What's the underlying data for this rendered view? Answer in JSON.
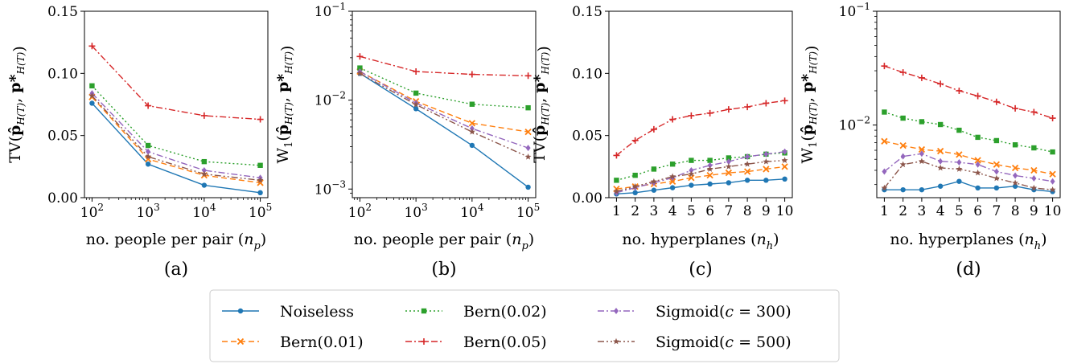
{
  "chart_data": [
    {
      "type": "line",
      "panel_label": "(a)",
      "xlabel": "no. people per pair (n_p)",
      "ylabel": "TV(p̂_H(T), p*_H(T))",
      "xscale": "log",
      "yscale": "linear",
      "x": [
        100,
        1000,
        10000,
        100000
      ],
      "x_tick_labels": [
        "10^2",
        "10^3",
        "10^4",
        "10^5"
      ],
      "ylim": [
        0,
        0.15
      ],
      "y_ticks": [
        0,
        0.05,
        0.1,
        0.15
      ],
      "y_tick_labels": [
        "0.00",
        "0.05",
        "0.10",
        "0.15"
      ],
      "grid": false,
      "series": [
        {
          "name": "Noiseless",
          "values": [
            0.076,
            0.027,
            0.01,
            0.004
          ]
        },
        {
          "name": "Bern(0.01)",
          "values": [
            0.081,
            0.031,
            0.018,
            0.012
          ]
        },
        {
          "name": "Bern(0.02)",
          "values": [
            0.09,
            0.042,
            0.029,
            0.026
          ]
        },
        {
          "name": "Bern(0.05)",
          "values": [
            0.122,
            0.074,
            0.066,
            0.063
          ]
        },
        {
          "name": "Sigmoid(c = 300)",
          "values": [
            0.084,
            0.037,
            0.022,
            0.016
          ]
        },
        {
          "name": "Sigmoid(c = 500)",
          "values": [
            0.082,
            0.033,
            0.019,
            0.014
          ]
        }
      ]
    },
    {
      "type": "line",
      "panel_label": "(b)",
      "xlabel": "no. people per pair (n_p)",
      "ylabel": "W1(p̂_H(T), p*_H(T))",
      "xscale": "log",
      "yscale": "log",
      "x": [
        100,
        1000,
        10000,
        100000
      ],
      "x_tick_labels": [
        "10^2",
        "10^3",
        "10^4",
        "10^5"
      ],
      "ylim": [
        0.0008,
        0.1
      ],
      "y_ticks": [
        0.001,
        0.01,
        0.1
      ],
      "y_tick_labels": [
        "10^-3",
        "10^-2",
        "10^-1"
      ],
      "grid": false,
      "series": [
        {
          "name": "Noiseless",
          "values": [
            0.02,
            0.008,
            0.0031,
            0.00105
          ]
        },
        {
          "name": "Bern(0.01)",
          "values": [
            0.021,
            0.0097,
            0.0055,
            0.0044
          ]
        },
        {
          "name": "Bern(0.02)",
          "values": [
            0.023,
            0.012,
            0.009,
            0.0082
          ]
        },
        {
          "name": "Bern(0.05)",
          "values": [
            0.031,
            0.021,
            0.0195,
            0.0188
          ]
        },
        {
          "name": "Sigmoid(c = 300)",
          "values": [
            0.021,
            0.0093,
            0.0048,
            0.0029
          ]
        },
        {
          "name": "Sigmoid(c = 500)",
          "values": [
            0.02,
            0.0089,
            0.0044,
            0.0023
          ]
        }
      ]
    },
    {
      "type": "line",
      "panel_label": "(c)",
      "xlabel": "no. hyperplanes (n_h)",
      "ylabel": "TV(p̂_H(T), p*_H(T))",
      "xscale": "linear",
      "yscale": "linear",
      "x": [
        1,
        2,
        3,
        4,
        5,
        6,
        7,
        8,
        9,
        10
      ],
      "x_tick_labels": [
        "1",
        "2",
        "3",
        "4",
        "5",
        "6",
        "7",
        "8",
        "9",
        "10"
      ],
      "ylim": [
        0,
        0.15
      ],
      "y_ticks": [
        0,
        0.05,
        0.1,
        0.15
      ],
      "y_tick_labels": [
        "0.00",
        "0.05",
        "0.10",
        "0.15"
      ],
      "grid": false,
      "series": [
        {
          "name": "Noiseless",
          "values": [
            0.003,
            0.004,
            0.006,
            0.008,
            0.01,
            0.011,
            0.012,
            0.014,
            0.014,
            0.015
          ]
        },
        {
          "name": "Bern(0.01)",
          "values": [
            0.007,
            0.009,
            0.011,
            0.013,
            0.016,
            0.018,
            0.02,
            0.021,
            0.023,
            0.025
          ]
        },
        {
          "name": "Bern(0.02)",
          "values": [
            0.014,
            0.018,
            0.023,
            0.027,
            0.03,
            0.03,
            0.032,
            0.033,
            0.035,
            0.036
          ]
        },
        {
          "name": "Bern(0.05)",
          "values": [
            0.034,
            0.046,
            0.055,
            0.063,
            0.066,
            0.068,
            0.071,
            0.073,
            0.076,
            0.078
          ]
        },
        {
          "name": "Sigmoid(c = 300)",
          "values": [
            0.004,
            0.008,
            0.012,
            0.016,
            0.022,
            0.026,
            0.029,
            0.033,
            0.035,
            0.037
          ]
        },
        {
          "name": "Sigmoid(c = 500)",
          "values": [
            0.005,
            0.009,
            0.013,
            0.017,
            0.019,
            0.023,
            0.025,
            0.027,
            0.029,
            0.03
          ]
        }
      ]
    },
    {
      "type": "line",
      "panel_label": "(d)",
      "xlabel": "no. hyperplanes (n_h)",
      "ylabel": "W1(p̂_H(T), p*_H(T))",
      "xscale": "linear",
      "yscale": "log",
      "x": [
        1,
        2,
        3,
        4,
        5,
        6,
        7,
        8,
        9,
        10
      ],
      "x_tick_labels": [
        "1",
        "2",
        "3",
        "4",
        "5",
        "6",
        "7",
        "8",
        "9",
        "10"
      ],
      "ylim": [
        0.0023,
        0.1
      ],
      "y_ticks": [
        0.01,
        0.1
      ],
      "y_tick_labels": [
        "10^-2",
        "10^-1"
      ],
      "grid": false,
      "series": [
        {
          "name": "Noiseless",
          "values": [
            0.0027,
            0.0027,
            0.0027,
            0.0029,
            0.0032,
            0.0028,
            0.0028,
            0.0029,
            0.0027,
            0.0026
          ]
        },
        {
          "name": "Bern(0.01)",
          "values": [
            0.0072,
            0.0066,
            0.0061,
            0.0059,
            0.0055,
            0.0049,
            0.0045,
            0.0042,
            0.004,
            0.0037
          ]
        },
        {
          "name": "Bern(0.02)",
          "values": [
            0.013,
            0.0115,
            0.0107,
            0.0101,
            0.009,
            0.0078,
            0.0073,
            0.0067,
            0.0063,
            0.0058
          ]
        },
        {
          "name": "Bern(0.05)",
          "values": [
            0.033,
            0.029,
            0.026,
            0.023,
            0.02,
            0.018,
            0.016,
            0.014,
            0.013,
            0.0115
          ]
        },
        {
          "name": "Sigmoid(c = 300)",
          "values": [
            0.0039,
            0.0053,
            0.0056,
            0.0048,
            0.0047,
            0.0045,
            0.0039,
            0.0036,
            0.0034,
            0.0032
          ]
        },
        {
          "name": "Sigmoid(c = 500)",
          "values": [
            0.0028,
            0.0045,
            0.0048,
            0.0042,
            0.0041,
            0.0038,
            0.0034,
            0.0031,
            0.0028,
            0.0027
          ]
        }
      ]
    }
  ],
  "legend": {
    "placement": "bottom-center",
    "items": [
      {
        "label": "Noiseless",
        "color": "#1f77b4",
        "dash": "solid",
        "marker": "circle"
      },
      {
        "label": "Bern(0.01)",
        "color": "#ff7f0e",
        "dash": "dashed",
        "marker": "x"
      },
      {
        "label": "Bern(0.02)",
        "color": "#2ca02c",
        "dash": "dotted",
        "marker": "square"
      },
      {
        "label": "Bern(0.05)",
        "color": "#d62728",
        "dash": "dashdot",
        "marker": "plus"
      },
      {
        "label": "Sigmoid(c = 300)",
        "color": "#9467bd",
        "dash": "dashdot",
        "marker": "diamond"
      },
      {
        "label": "Sigmoid(c = 500)",
        "color": "#8c564b",
        "dash": "dashdotdot",
        "marker": "star"
      }
    ]
  }
}
